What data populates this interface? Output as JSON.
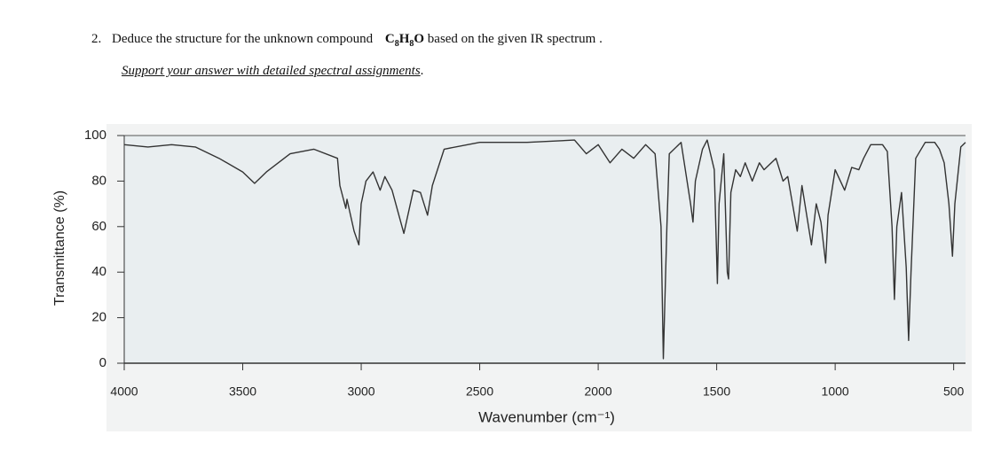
{
  "question": {
    "number": "2.",
    "prefix": "Deduce the structure for the unknown compound",
    "formula": [
      "C",
      "8",
      "H",
      "8",
      "O"
    ],
    "suffix": "based on the given IR spectrum .",
    "line2": "Support your answer with detailed spectral assignments",
    "line2_end": "."
  },
  "chart_data": {
    "type": "line",
    "color": "#333333",
    "x_label": "Wavenumber (cm⁻¹)",
    "y_label": "Transmittance (%)",
    "xlim": [
      4000,
      450
    ],
    "ylim": [
      0,
      100
    ],
    "xticks": [
      4000,
      3500,
      3000,
      2500,
      2000,
      1500,
      1000,
      500
    ],
    "yticks": [
      0,
      20,
      40,
      60,
      80,
      100
    ],
    "x": [
      4000,
      3900,
      3800,
      3700,
      3600,
      3500,
      3450,
      3400,
      3300,
      3200,
      3100,
      3090,
      3065,
      3060,
      3030,
      3010,
      3000,
      2980,
      2950,
      2920,
      2900,
      2870,
      2820,
      2780,
      2750,
      2720,
      2700,
      2650,
      2500,
      2300,
      2100,
      2050,
      2000,
      1950,
      1900,
      1850,
      1800,
      1760,
      1735,
      1725,
      1710,
      1700,
      1650,
      1610,
      1600,
      1590,
      1560,
      1540,
      1510,
      1497,
      1490,
      1470,
      1455,
      1450,
      1440,
      1420,
      1400,
      1380,
      1350,
      1320,
      1300,
      1250,
      1220,
      1200,
      1160,
      1140,
      1100,
      1080,
      1060,
      1040,
      1030,
      1000,
      960,
      930,
      900,
      880,
      850,
      800,
      780,
      760,
      750,
      740,
      720,
      700,
      690,
      680,
      660,
      620,
      580,
      560,
      540,
      520,
      505,
      495,
      470,
      450
    ],
    "values": [
      96,
      95,
      96,
      95,
      90,
      84,
      79,
      84,
      92,
      94,
      90,
      78,
      68,
      72,
      58,
      52,
      70,
      80,
      84,
      76,
      82,
      76,
      57,
      76,
      75,
      65,
      78,
      94,
      97,
      97,
      98,
      92,
      96,
      88,
      94,
      90,
      96,
      92,
      60,
      2,
      60,
      92,
      97,
      70,
      62,
      80,
      94,
      98,
      85,
      35,
      70,
      92,
      40,
      37,
      75,
      85,
      82,
      88,
      80,
      88,
      85,
      90,
      80,
      82,
      58,
      78,
      52,
      70,
      62,
      44,
      65,
      85,
      76,
      86,
      85,
      90,
      96,
      96,
      93,
      60,
      28,
      60,
      75,
      42,
      10,
      40,
      90,
      97,
      97,
      94,
      88,
      70,
      47,
      70,
      95,
      97
    ]
  }
}
